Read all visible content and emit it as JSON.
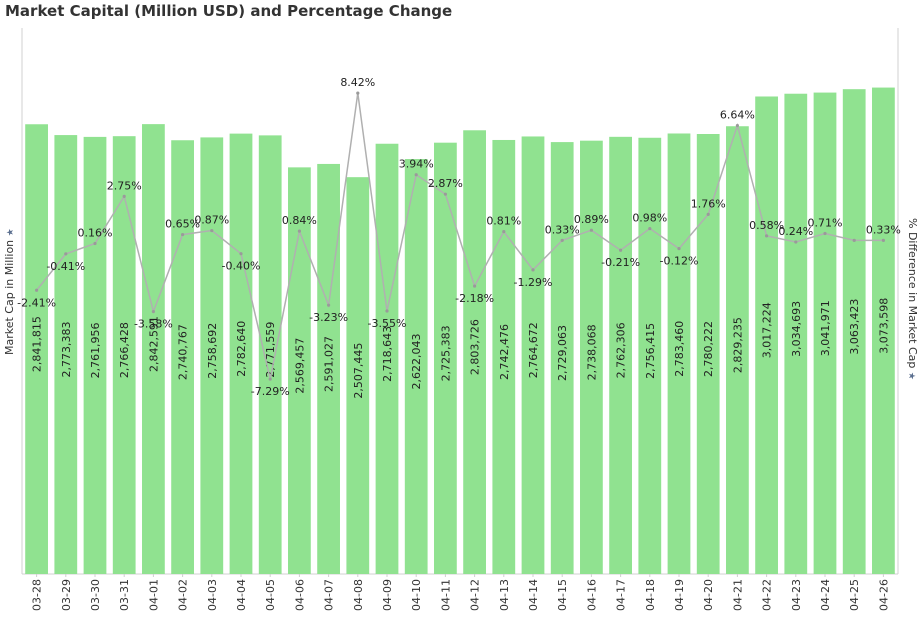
{
  "chart_data": {
    "type": "bar",
    "title": "Market Capital (Million USD) and Percentage Change",
    "ylabel": "Market Cap in Million",
    "y2label": "% Difference in Market Cap",
    "categories": [
      "03-28",
      "03-29",
      "03-30",
      "03-31",
      "04-01",
      "04-02",
      "04-03",
      "04-04",
      "04-05",
      "04-06",
      "04-07",
      "04-08",
      "04-09",
      "04-10",
      "04-11",
      "04-12",
      "04-13",
      "04-14",
      "04-15",
      "04-16",
      "04-17",
      "04-18",
      "04-19",
      "04-20",
      "04-21",
      "04-22",
      "04-23",
      "04-24",
      "04-25",
      "04-26"
    ],
    "series": [
      {
        "type": "bar",
        "values": [
          2841815,
          2773383,
          2761956,
          2766428,
          2842591,
          2740767,
          2758692,
          2782640,
          2771559,
          2569457,
          2591027,
          2507445,
          2718643,
          2622043,
          2725383,
          2803726,
          2742476,
          2764672,
          2729063,
          2738068,
          2762306,
          2756415,
          2783460,
          2780222,
          2829235,
          3017224,
          3034693,
          3041971,
          3063423,
          3073598
        ],
        "labels": [
          "2,841,815",
          "2,773,383",
          "2,761,956",
          "2,766,428",
          "2,842,591",
          "2,740,767",
          "2,758,692",
          "2,782,640",
          "2,771,559",
          "2,569,457",
          "2,591,027",
          "2,507,445",
          "2,718,643",
          "2,622,043",
          "2,725,383",
          "2,803,726",
          "2,742,476",
          "2,764,672",
          "2,729,063",
          "2,738,068",
          "2,762,306",
          "2,756,415",
          "2,783,460",
          "2,780,222",
          "2,829,235",
          "3,017,224",
          "3,034,693",
          "3,041,971",
          "3,063,423",
          "3,073,598"
        ],
        "color": "#90e290"
      },
      {
        "type": "line",
        "values": [
          -2.41,
          -0.41,
          0.16,
          2.75,
          -3.58,
          0.65,
          0.87,
          -0.4,
          -7.29,
          0.84,
          -3.23,
          8.42,
          -3.55,
          3.94,
          2.87,
          -2.18,
          0.81,
          -1.29,
          0.33,
          0.89,
          -0.21,
          0.98,
          -0.12,
          1.76,
          6.64,
          0.58,
          0.24,
          0.71,
          0.33,
          0.33
        ],
        "labels": [
          "-2.41%",
          "-0.41%",
          "0.16%",
          "2.75%",
          "-3.58%",
          "0.65%",
          "0.87%",
          "-0.40%",
          "-7.29%",
          "0.84%",
          "-3.23%",
          "8.42%",
          "-3.55%",
          "3.94%",
          "2.87%",
          "-2.18%",
          "0.81%",
          "-1.29%",
          "0.33%",
          "0.89%",
          "-0.21%",
          "0.98%",
          "-0.12%",
          "1.76%",
          "6.64%",
          "0.58%",
          "0.24%",
          "0.71%",
          "",
          "0.33%"
        ],
        "color": "#b0b0b0"
      }
    ],
    "ylim": [
      0,
      3450000
    ],
    "y2lim": [
      -18,
      12
    ],
    "grid": false,
    "legend": "none"
  },
  "icons": {
    "pin": "pin-icon"
  }
}
